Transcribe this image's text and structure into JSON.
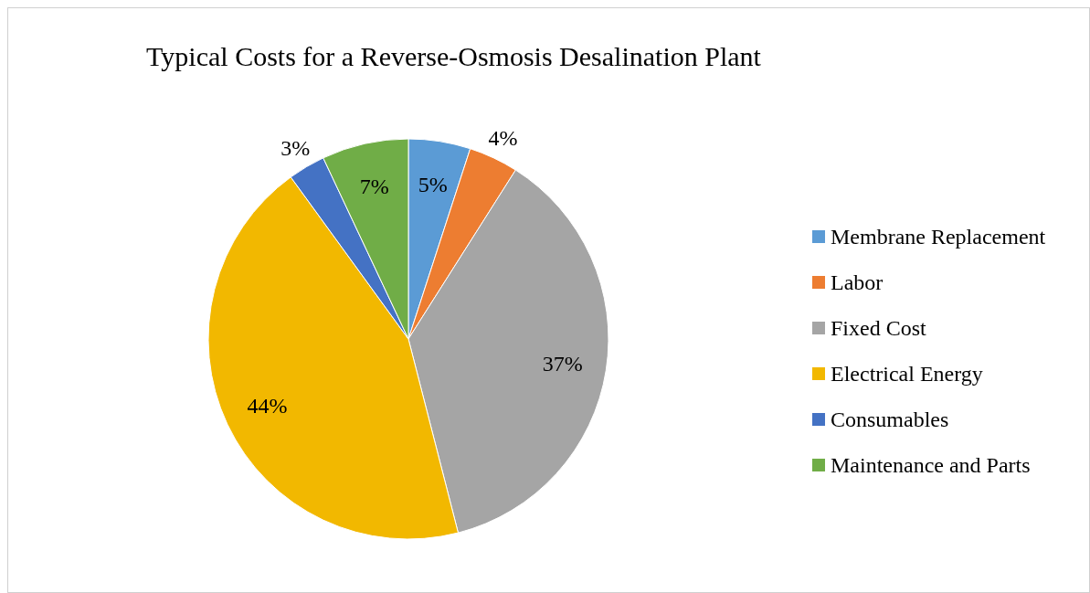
{
  "chart_data": {
    "type": "pie",
    "title": "Typical Costs for a Reverse-Osmosis Desalination Plant",
    "categories": [
      "Membrane Replacement",
      "Labor",
      "Fixed Cost",
      "Electrical Energy",
      "Consumables",
      "Maintenance and Parts"
    ],
    "values": [
      5,
      4,
      37,
      44,
      3,
      7
    ],
    "colors": [
      "#5b9bd5",
      "#ed7d31",
      "#a5a5a5",
      "#f2b800",
      "#4472c4",
      "#70ad47"
    ],
    "value_labels": [
      "5%",
      "4%",
      "37%",
      "44%",
      "3%",
      "7%"
    ],
    "legend": "right"
  }
}
